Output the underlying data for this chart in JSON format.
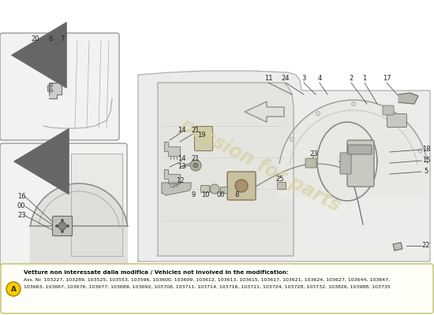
{
  "bg_color": "#ffffff",
  "line_color": "#555555",
  "light_fill": "#f0f0ee",
  "door_fill": "#e8e8e4",
  "inset_fill": "#f2f2f0",
  "note_bg": "#fffff8",
  "note_border": "#cccc88",
  "note_title": "Vetture non interessate dalla modifica / Vehicles not involved in the modification:",
  "note_line1": "Ass. Nr. 103227, 103289, 103525, 103553, 103596, 103600, 103609, 103612, 103613, 103615, 103617, 103621, 103624, 103627, 103644, 103647,",
  "note_line2": "103663, 103667, 103676, 103677, 103689, 103692, 103708, 103711, 103714, 103716, 103721, 103724, 103728, 103732, 103826, 103988, 103735",
  "circle_label": "A",
  "watermark1": "passion for parts",
  "wm_color": "#d8d0a0",
  "label_fs": 6.0,
  "label_color": "#222222"
}
